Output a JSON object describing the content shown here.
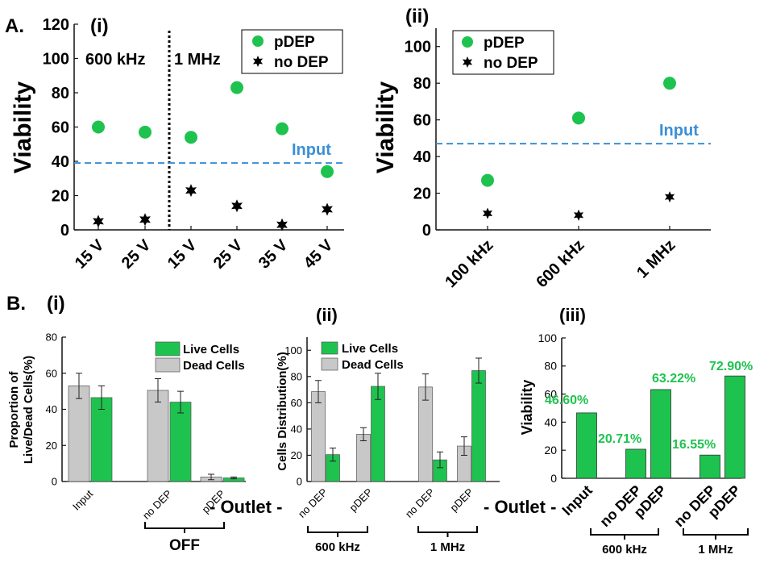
{
  "colors": {
    "green": "#1ec34f",
    "dead": "#c8c8c8",
    "blue": "#3a8fd6",
    "axis": "#111111",
    "green_label": "#1ec34f"
  },
  "labels": {
    "panel_a": "A.",
    "panel_b": "B.",
    "sub_i": "(i)",
    "sub_ii": "(ii)",
    "sub_iii": "(iii)",
    "outlet": "- Outlet -",
    "off": "OFF",
    "f600": "600 kHz",
    "f1m": "1 MHz"
  },
  "chart_data": [
    {
      "type": "scatter",
      "panel": "A (i)",
      "ylabel": "Viability",
      "ylim": [
        0,
        120
      ],
      "yticks": [
        0,
        20,
        40,
        60,
        80,
        100,
        120
      ],
      "categories": [
        "15 V",
        "25 V",
        "15 V",
        "25 V",
        "35 V",
        "45 V"
      ],
      "divider_labels": [
        "600 kHz",
        "1 MHz"
      ],
      "legend": "top-right",
      "input_line": {
        "label": "Input",
        "value": 39
      },
      "series": [
        {
          "name": "pDEP",
          "marker": "circle",
          "values": [
            60,
            57,
            54,
            83,
            59,
            34
          ]
        },
        {
          "name": "no DEP",
          "marker": "star",
          "values": [
            5,
            6,
            23,
            14,
            3,
            12
          ]
        }
      ]
    },
    {
      "type": "scatter",
      "panel": "A (ii)",
      "ylabel": "Viability",
      "ylim": [
        0,
        110
      ],
      "yticks": [
        0,
        20,
        40,
        60,
        80,
        100
      ],
      "categories": [
        "100 kHz",
        "600 kHz",
        "1 MHz"
      ],
      "legend": "top-left",
      "input_line": {
        "label": "Input",
        "value": 47
      },
      "series": [
        {
          "name": "pDEP",
          "marker": "circle",
          "values": [
            27,
            61,
            80
          ]
        },
        {
          "name": "no DEP",
          "marker": "star",
          "values": [
            9,
            8,
            18
          ]
        }
      ]
    },
    {
      "type": "bar",
      "panel": "B (i)",
      "ylabel_lines": [
        "Proportion of",
        "Live/Dead Cells(%)"
      ],
      "ylim": [
        0,
        80
      ],
      "yticks": [
        0,
        20,
        40,
        60,
        80
      ],
      "categories": [
        "Input",
        "no DEP",
        "pDEP"
      ],
      "group_label": "OFF",
      "legend": "top-right",
      "series": [
        {
          "name": "Dead Cells",
          "values": [
            53,
            50.5,
            2.5
          ],
          "errors": [
            7,
            6.5,
            1.5
          ]
        },
        {
          "name": "Live Cells",
          "values": [
            46.5,
            44,
            2
          ],
          "errors": [
            6.5,
            6,
            0.5
          ]
        }
      ]
    },
    {
      "type": "bar",
      "panel": "B (ii)",
      "ylabel": "Cells Distribution(%)",
      "ylim": [
        0,
        110
      ],
      "yticks": [
        0,
        20,
        40,
        60,
        80,
        100
      ],
      "categories": [
        "no DEP",
        "pDEP",
        "no DEP",
        "pDEP"
      ],
      "groups": [
        "600 kHz",
        "1 MHz"
      ],
      "legend": "top-left",
      "series": [
        {
          "name": "Dead Cells",
          "values": [
            68.5,
            36,
            72,
            27
          ],
          "errors": [
            8.5,
            5,
            10,
            7
          ]
        },
        {
          "name": "Live Cells",
          "values": [
            20.5,
            72.5,
            16.5,
            84.5
          ],
          "errors": [
            5,
            10,
            6,
            9.5
          ]
        }
      ]
    },
    {
      "type": "bar",
      "panel": "B (iii)",
      "ylabel": "Viability",
      "ylim": [
        0,
        100
      ],
      "yticks": [
        0,
        20,
        40,
        60,
        80,
        100
      ],
      "categories": [
        "Input",
        "no DEP",
        "pDEP",
        "no DEP",
        "pDEP"
      ],
      "groups": [
        "600 kHz",
        "1 MHz"
      ],
      "values": [
        46.6,
        20.71,
        63.22,
        16.55,
        72.9
      ],
      "data_labels": [
        "46.60%",
        "20.71%",
        "63.22%",
        "16.55%",
        "72.90%"
      ]
    }
  ]
}
